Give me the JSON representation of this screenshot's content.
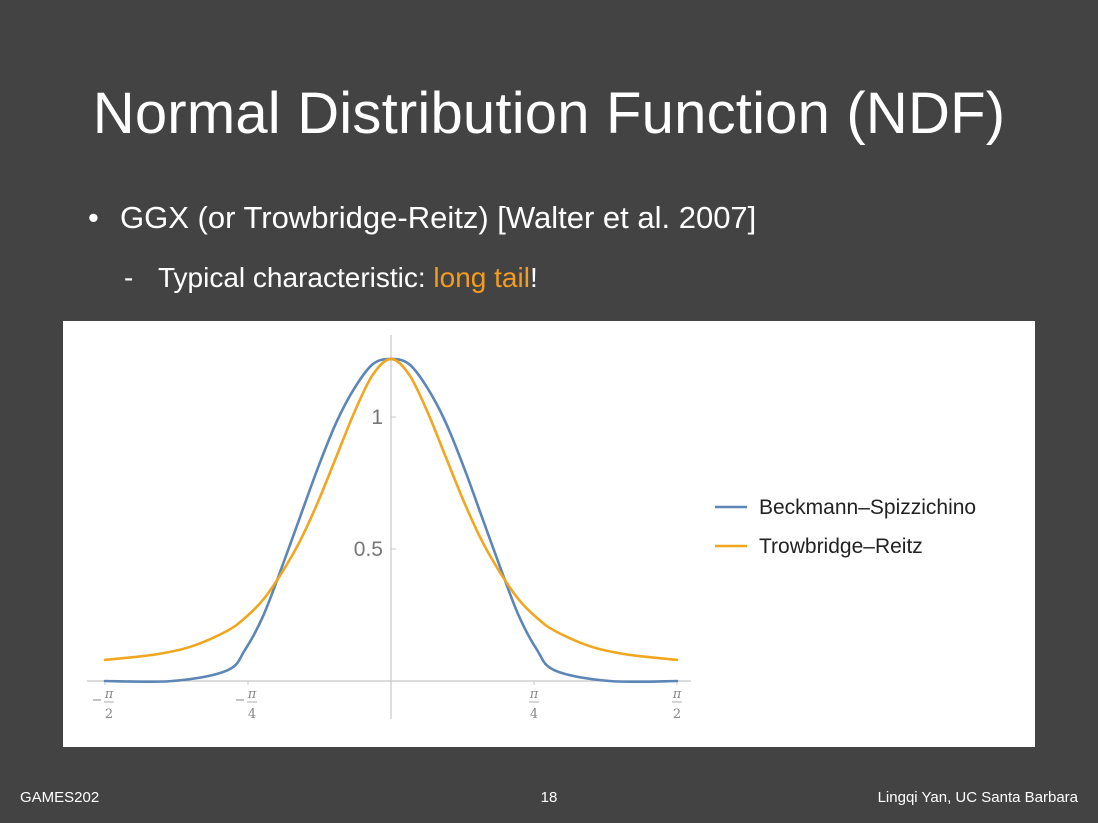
{
  "slide": {
    "title": "Normal Distribution Function (NDF)",
    "bullet": "GGX (or Trowbridge-Reitz) [Walter et al. 2007]",
    "sub_bullet_prefix": "Typical characteristic: ",
    "sub_bullet_highlight": "long tail",
    "sub_bullet_suffix": "!",
    "bullet_symbol": "•",
    "sub_bullet_symbol": "-"
  },
  "footer": {
    "left": "GAMES202",
    "center": "18",
    "right": "Lingqi Yan, UC Santa Barbara"
  },
  "colors": {
    "background": "#434343",
    "highlight": "#f39c1f",
    "beckmann": "#5b86b5",
    "trowbridge": "#f0a61f"
  },
  "chart_data": {
    "type": "line",
    "title": "",
    "xlabel": "",
    "ylabel": "",
    "xlim": [
      -1.5708,
      1.5708
    ],
    "ylim": [
      0,
      1.25
    ],
    "grid": false,
    "legend_position": "right",
    "x_ticks": [
      {
        "value": -1.5708,
        "sign": "−",
        "num": "π",
        "den": "2"
      },
      {
        "value": -0.7854,
        "sign": "−",
        "num": "π",
        "den": "4"
      },
      {
        "value": 0.7854,
        "sign": "",
        "num": "π",
        "den": "4"
      },
      {
        "value": 1.5708,
        "sign": "",
        "num": "π",
        "den": "2"
      }
    ],
    "y_ticks": [
      {
        "value": 0.5,
        "label": "0.5"
      },
      {
        "value": 1.0,
        "label": "1"
      }
    ],
    "series": [
      {
        "name": "Beckmann–Spizzichino",
        "color": "#5b86b5",
        "x": [
          -1.5708,
          -1.2,
          -0.9,
          -0.8,
          -0.7,
          -0.6,
          -0.5,
          -0.4,
          -0.3,
          -0.2,
          -0.1,
          0,
          0.1,
          0.2,
          0.3,
          0.4,
          0.5,
          0.6,
          0.7,
          0.8,
          0.9,
          1.2,
          1.5708
        ],
        "y": [
          0.0,
          0.0,
          0.04,
          0.12,
          0.25,
          0.43,
          0.62,
          0.81,
          0.98,
          1.11,
          1.2,
          1.22,
          1.2,
          1.11,
          0.98,
          0.81,
          0.62,
          0.43,
          0.25,
          0.12,
          0.04,
          0.0,
          0.0
        ]
      },
      {
        "name": "Trowbridge–Reitz",
        "color": "#f0a61f",
        "x": [
          -1.5708,
          -1.3,
          -1.1,
          -0.9,
          -0.8,
          -0.7,
          -0.6,
          -0.5,
          -0.4,
          -0.3,
          -0.2,
          -0.1,
          0,
          0.1,
          0.2,
          0.3,
          0.4,
          0.5,
          0.6,
          0.7,
          0.8,
          0.9,
          1.1,
          1.3,
          1.5708
        ],
        "y": [
          0.08,
          0.1,
          0.13,
          0.19,
          0.24,
          0.31,
          0.41,
          0.53,
          0.68,
          0.85,
          1.02,
          1.16,
          1.22,
          1.16,
          1.02,
          0.85,
          0.68,
          0.53,
          0.41,
          0.31,
          0.24,
          0.19,
          0.13,
          0.1,
          0.08
        ]
      }
    ]
  }
}
